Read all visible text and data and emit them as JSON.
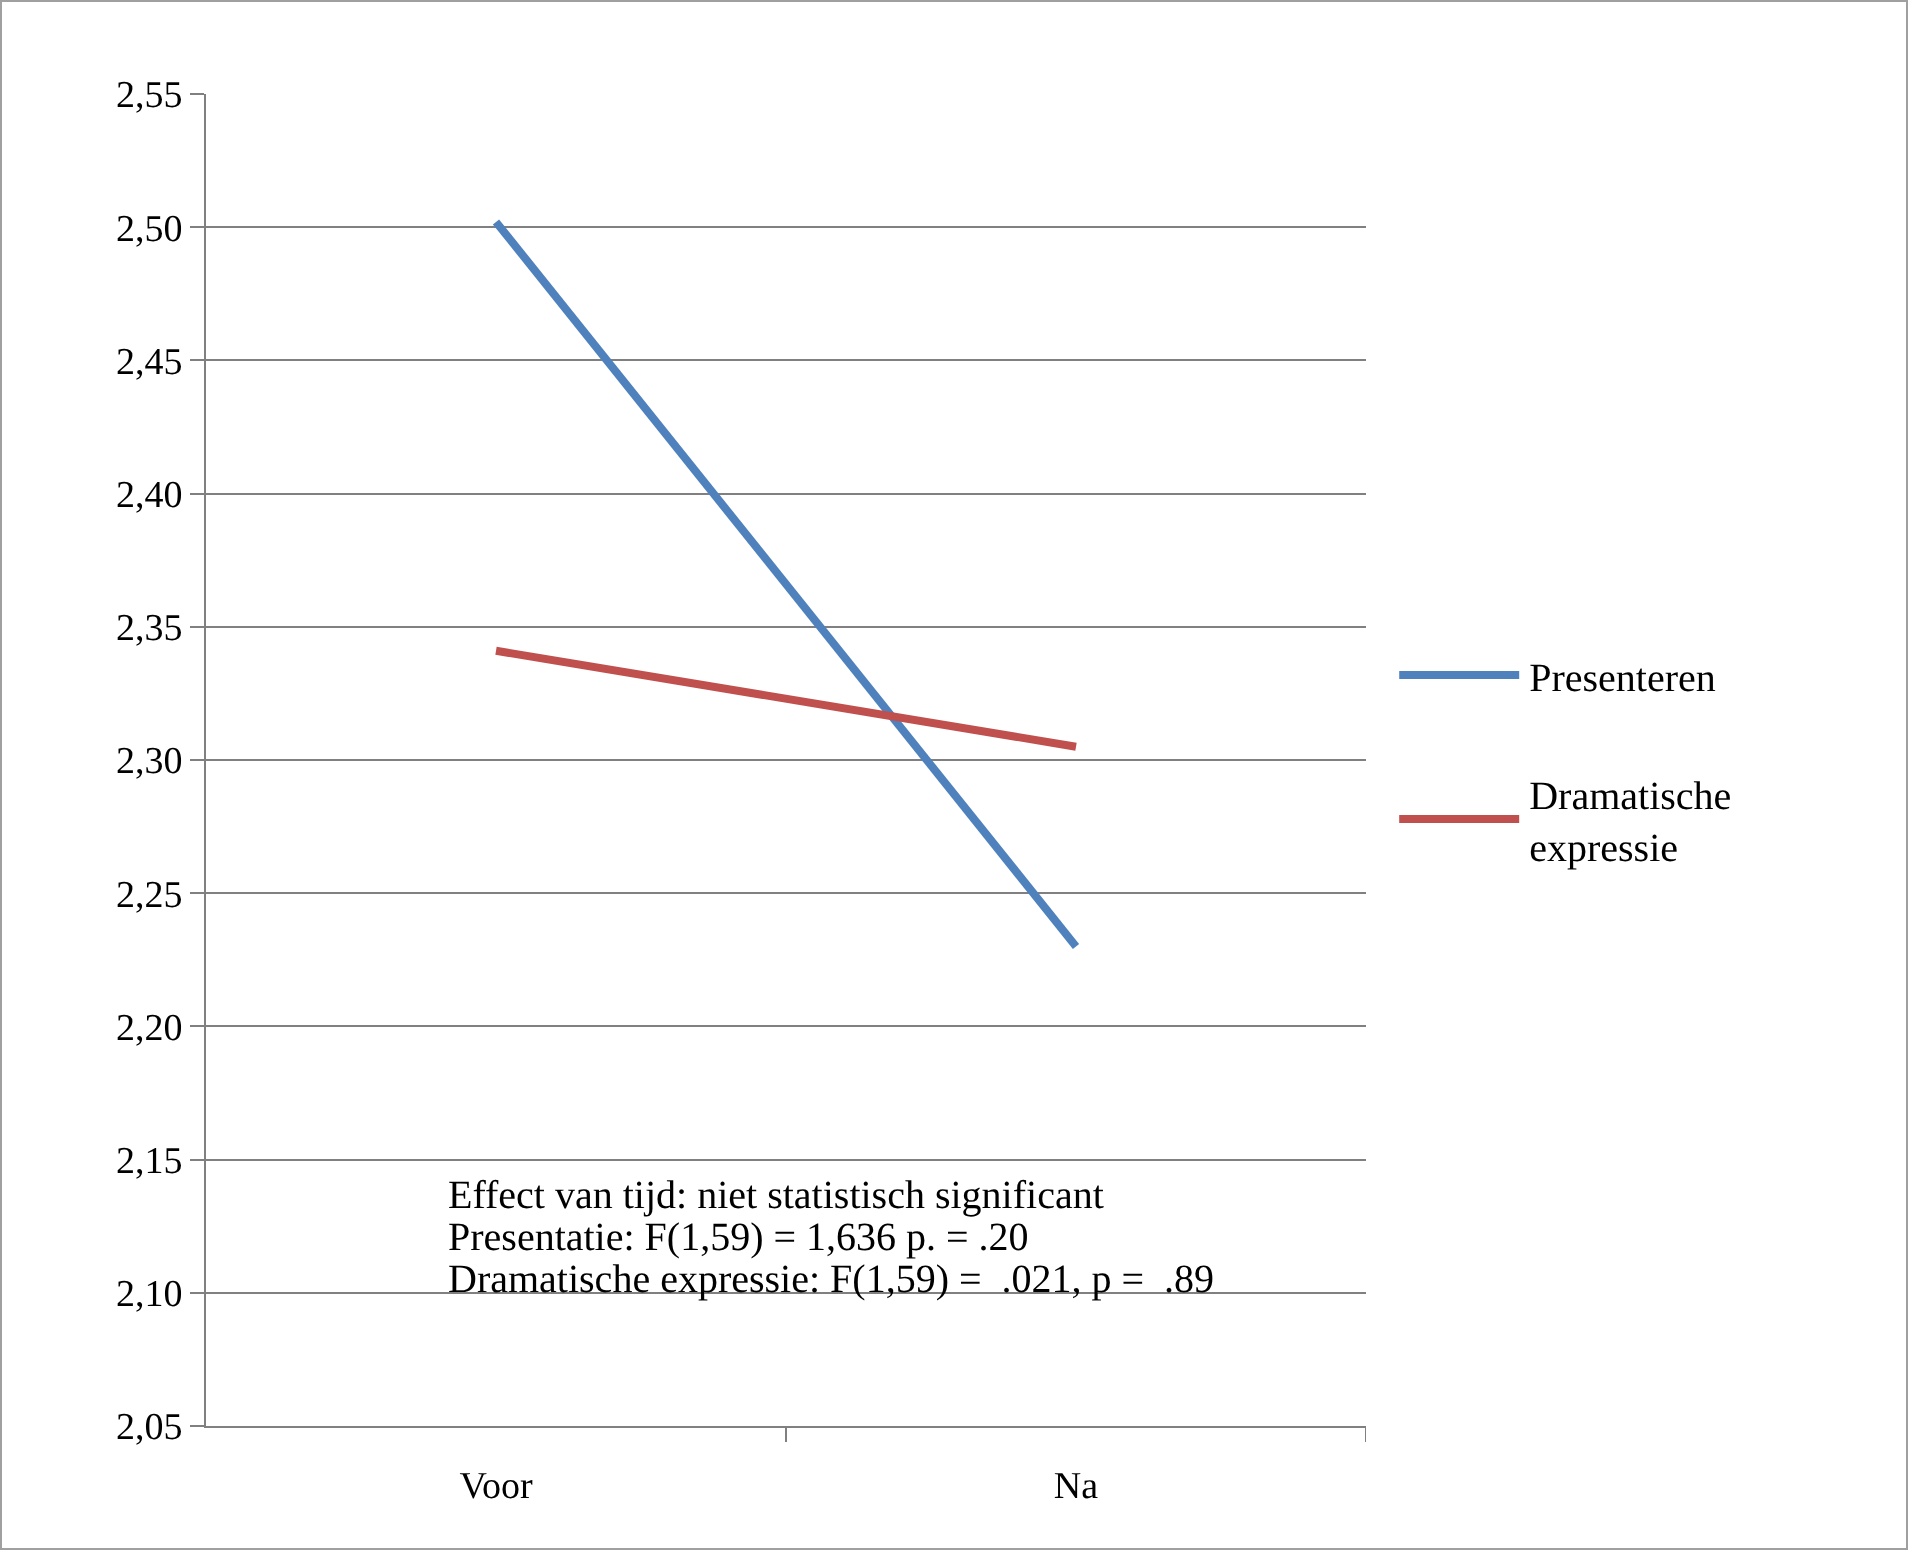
{
  "chart_data": {
    "type": "line",
    "categories": [
      "Voor",
      "Na"
    ],
    "series": [
      {
        "name": "Presenteren",
        "color": "#4f81bd",
        "values": [
          2.502,
          2.23
        ]
      },
      {
        "name": "Dramatische expressie",
        "color": "#c0504d",
        "values": [
          2.341,
          2.305
        ]
      }
    ],
    "ylim": [
      2.05,
      2.55
    ],
    "yticks": [
      {
        "value": 2.05,
        "label": "2,05"
      },
      {
        "value": 2.1,
        "label": "2,10"
      },
      {
        "value": 2.15,
        "label": "2,15"
      },
      {
        "value": 2.2,
        "label": "2,20"
      },
      {
        "value": 2.25,
        "label": "2,25"
      },
      {
        "value": 2.3,
        "label": "2,30"
      },
      {
        "value": 2.35,
        "label": "2,35"
      },
      {
        "value": 2.4,
        "label": "2,40"
      },
      {
        "value": 2.45,
        "label": "2,45"
      },
      {
        "value": 2.5,
        "label": "2,50"
      },
      {
        "value": 2.55,
        "label": "2,55"
      }
    ],
    "grid": "y",
    "legend": "right",
    "marker": "none",
    "line_style": "solid",
    "annotations": [
      "Effect van tijd: niet statistisch significant",
      "Presentatie: F(1,59) = 1,636 p. = .20",
      "Dramatische expressie: F(1,59) =  .021, p =  .89"
    ]
  }
}
